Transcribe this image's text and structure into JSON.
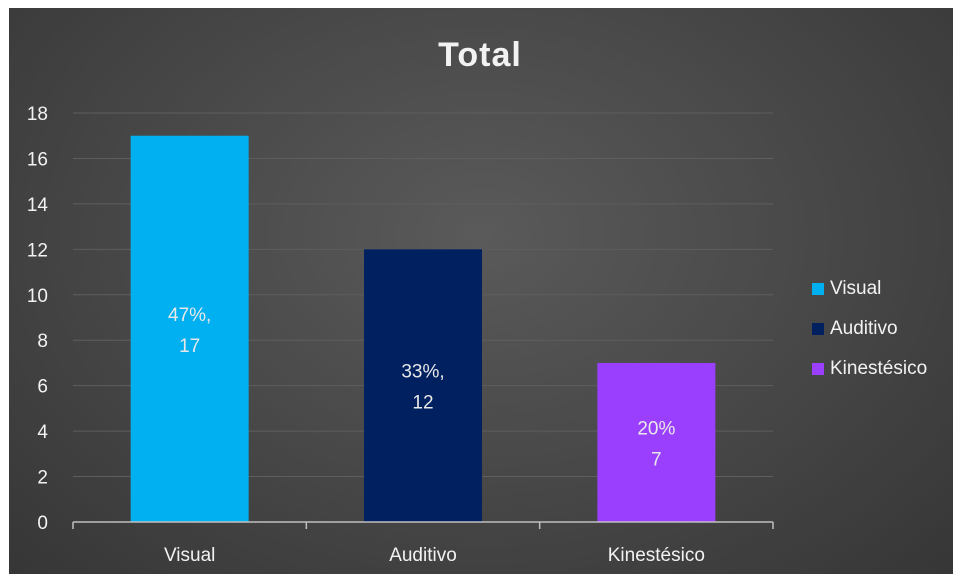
{
  "chart_data": {
    "type": "bar",
    "title": "Total",
    "categories": [
      "Visual",
      "Auditivo",
      "Kinestésico"
    ],
    "values": [
      17,
      12,
      7
    ],
    "data_labels": [
      [
        "47%,",
        "17"
      ],
      [
        "33%,",
        "12"
      ],
      [
        "20%",
        "7"
      ]
    ],
    "colors": [
      "#00b0f0",
      "#002060",
      "#9b3fff"
    ],
    "ylim": [
      0,
      18
    ],
    "yticks": [
      0,
      2,
      4,
      6,
      8,
      10,
      12,
      14,
      16,
      18
    ],
    "grid": true,
    "legend_position": "right",
    "legend": [
      "Visual",
      "Auditivo",
      "Kinestésico"
    ]
  }
}
